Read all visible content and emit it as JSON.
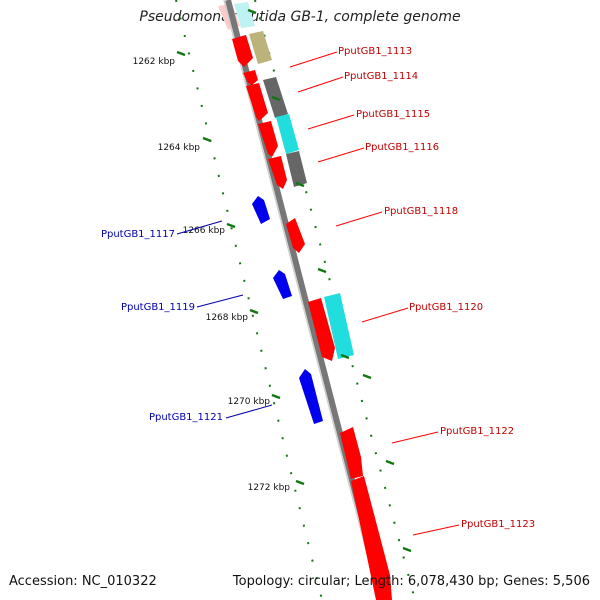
{
  "header": {
    "title": "Pseudomonas putida GB-1, complete genome"
  },
  "footer": {
    "accession": "Accession: NC_010322",
    "topology": "Topology: circular; Length: 6,078,430 bp; Genes: 5,506"
  },
  "colors": {
    "forward_cds": "#ff0000",
    "reverse_cds": "#0000ee",
    "backbone": "#8a8a8a",
    "tick": "#117711",
    "cyan": "#22dddd",
    "gray": "#666666",
    "olive": "#bbb37a"
  },
  "scale": {
    "ticks": [
      {
        "label": "1262 kbp"
      },
      {
        "label": "1264 kbp"
      },
      {
        "label": "1266 kbp"
      },
      {
        "label": "1268 kbp"
      },
      {
        "label": "1270 kbp"
      },
      {
        "label": "1272 kbp"
      }
    ]
  },
  "genes": [
    {
      "name": "PputGB1_1113",
      "strand": "+"
    },
    {
      "name": "PputGB1_1114",
      "strand": "+"
    },
    {
      "name": "PputGB1_1115",
      "strand": "+"
    },
    {
      "name": "PputGB1_1116",
      "strand": "+"
    },
    {
      "name": "PputGB1_1117",
      "strand": "-"
    },
    {
      "name": "PputGB1_1118",
      "strand": "+"
    },
    {
      "name": "PputGB1_1119",
      "strand": "-"
    },
    {
      "name": "PputGB1_1120",
      "strand": "+"
    },
    {
      "name": "PputGB1_1121",
      "strand": "-"
    },
    {
      "name": "PputGB1_1122",
      "strand": "+"
    },
    {
      "name": "PputGB1_1123",
      "strand": "+"
    }
  ]
}
